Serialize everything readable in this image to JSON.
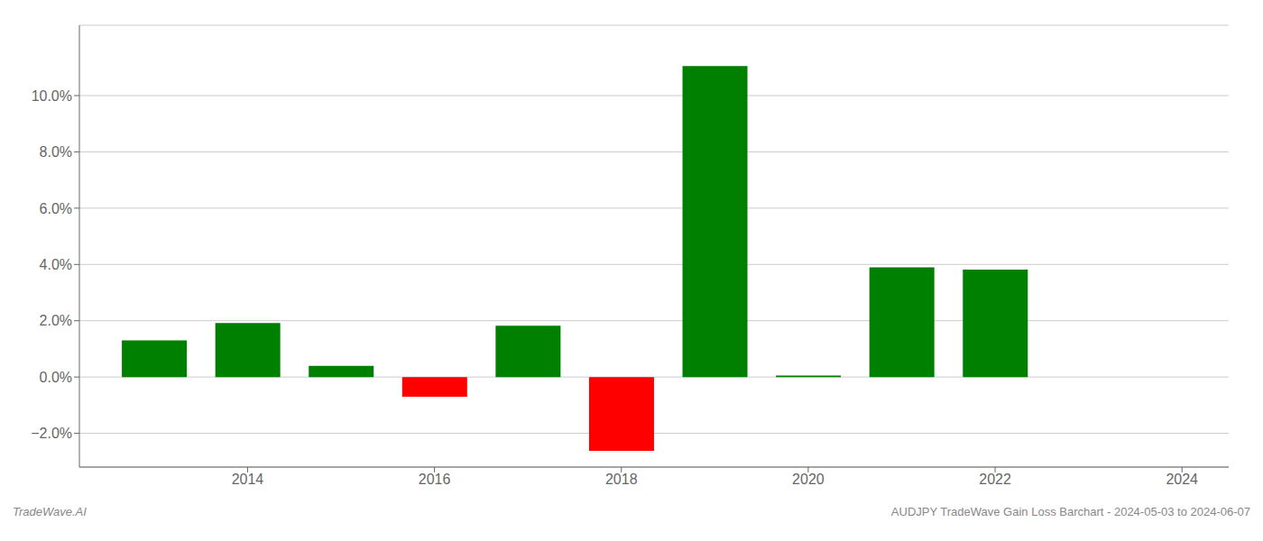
{
  "chart_data": {
    "type": "bar",
    "x": [
      2013,
      2014,
      2015,
      2016,
      2017,
      2018,
      2019,
      2020,
      2021,
      2022
    ],
    "values": [
      1.3,
      1.92,
      0.4,
      -0.7,
      1.82,
      -2.62,
      11.05,
      0.05,
      3.9,
      3.82
    ],
    "colors": [
      "#008000",
      "#008000",
      "#008000",
      "#ff0000",
      "#008000",
      "#ff0000",
      "#008000",
      "#008000",
      "#008000",
      "#008000"
    ],
    "ylim": [
      -3.2,
      12.5
    ],
    "yticks": [
      {
        "value": -2.0,
        "label": "−2.0%"
      },
      {
        "value": 0.0,
        "label": "0.0%"
      },
      {
        "value": 2.0,
        "label": "2.0%"
      },
      {
        "value": 4.0,
        "label": "4.0%"
      },
      {
        "value": 6.0,
        "label": "6.0%"
      },
      {
        "value": 8.0,
        "label": "8.0%"
      },
      {
        "value": 10.0,
        "label": "10.0%"
      }
    ],
    "xlim": [
      2012.2,
      2024.5
    ],
    "xticks": [
      2014,
      2016,
      2018,
      2020,
      2022,
      2024
    ],
    "grid": true,
    "annotations": [
      "TradeWave.AI",
      "AUDJPY TradeWave Gain Loss Barchart - 2024-05-03 to 2024-06-07"
    ]
  }
}
